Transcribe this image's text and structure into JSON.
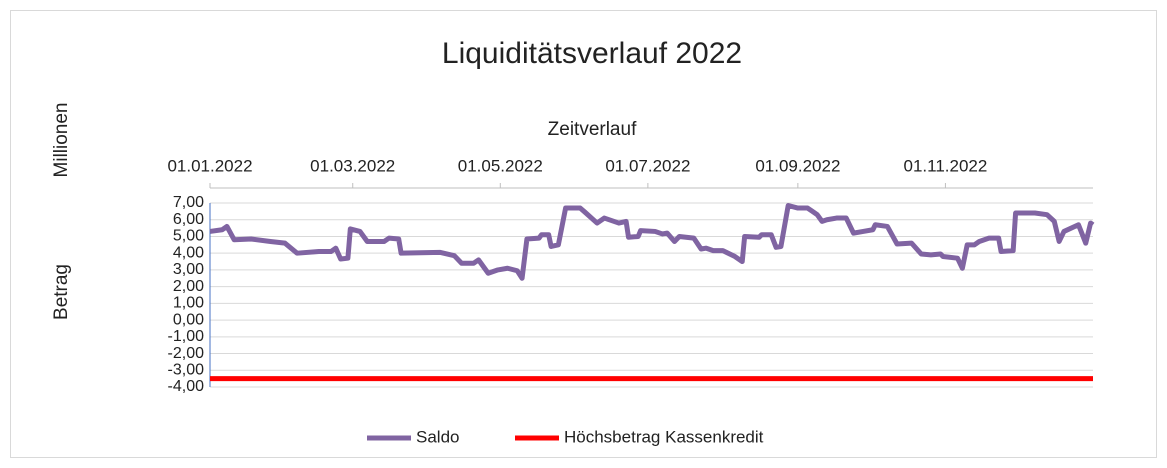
{
  "chart_data": {
    "type": "line",
    "title": "Liquiditätsverlauf 2022",
    "x_label": "Zeitverlauf",
    "y_label_top": "Millionen",
    "y_label": "Betrag",
    "xlim": [
      0,
      365
    ],
    "xticks": [
      {
        "value": 0,
        "label": "01.01.2022"
      },
      {
        "value": 59,
        "label": "01.03.2022"
      },
      {
        "value": 120,
        "label": "01.05.2022"
      },
      {
        "value": 181,
        "label": "01.07.2022"
      },
      {
        "value": 243,
        "label": "01.09.2022"
      },
      {
        "value": 304,
        "label": "01.11.2022"
      }
    ],
    "ylim": [
      -4,
      7
    ],
    "yticks": [
      {
        "value": 7,
        "label": "7,00"
      },
      {
        "value": 6,
        "label": "6,00"
      },
      {
        "value": 5,
        "label": "5,00"
      },
      {
        "value": 4,
        "label": "4,00"
      },
      {
        "value": 3,
        "label": "3,00"
      },
      {
        "value": 2,
        "label": "2,00"
      },
      {
        "value": 1,
        "label": "1,00"
      },
      {
        "value": 0,
        "label": "0,00"
      },
      {
        "value": -1,
        "label": "-1,00"
      },
      {
        "value": -2,
        "label": "-2,00"
      },
      {
        "value": -3,
        "label": "-3,00"
      },
      {
        "value": -4,
        "label": "-4,00"
      }
    ],
    "grid": true,
    "legend": "bottom",
    "series": [
      {
        "name": "Saldo",
        "color": "#8064a2",
        "x": [
          0,
          5,
          7,
          10,
          17,
          25,
          31,
          36,
          45,
          50,
          52,
          54,
          57,
          58,
          62,
          65,
          72,
          74,
          78,
          79,
          95,
          101,
          104,
          109,
          111,
          115,
          119,
          123,
          127,
          129,
          131,
          136,
          137,
          140,
          141,
          144,
          147,
          153,
          155,
          160,
          163,
          169,
          172,
          173,
          177,
          178,
          184,
          187,
          189,
          192,
          194,
          200,
          203,
          205,
          208,
          212,
          217,
          220,
          221,
          227,
          228,
          232,
          234,
          236,
          239,
          243,
          247,
          249,
          251,
          253,
          255,
          259,
          263,
          266,
          270,
          274,
          275,
          280,
          284,
          290,
          294,
          298,
          302,
          303,
          309,
          311,
          313,
          316,
          318,
          322,
          326,
          327,
          332,
          333,
          341,
          346,
          349,
          351,
          353,
          359,
          362,
          364,
          365
        ],
        "values": [
          5.3,
          5.4,
          5.6,
          4.8,
          4.85,
          4.7,
          4.6,
          4.0,
          4.1,
          4.1,
          4.3,
          3.65,
          3.7,
          5.45,
          5.3,
          4.7,
          4.7,
          4.9,
          4.85,
          4.0,
          4.05,
          3.85,
          3.4,
          3.4,
          3.6,
          2.8,
          3.0,
          3.1,
          2.95,
          2.5,
          4.85,
          4.9,
          5.1,
          5.1,
          4.4,
          4.5,
          6.7,
          6.7,
          6.45,
          5.8,
          6.1,
          5.8,
          5.9,
          4.95,
          5.0,
          5.35,
          5.3,
          5.15,
          5.2,
          4.7,
          5.0,
          4.9,
          4.25,
          4.3,
          4.15,
          4.15,
          3.8,
          3.5,
          5.0,
          4.95,
          5.1,
          5.1,
          4.35,
          4.4,
          6.85,
          6.7,
          6.7,
          6.5,
          6.3,
          5.9,
          6.0,
          6.1,
          6.1,
          5.2,
          5.3,
          5.4,
          5.7,
          5.6,
          4.55,
          4.6,
          3.95,
          3.9,
          3.95,
          3.8,
          3.7,
          3.1,
          4.5,
          4.5,
          4.7,
          4.9,
          4.9,
          4.1,
          4.15,
          6.4,
          6.4,
          6.3,
          5.9,
          4.7,
          5.3,
          5.7,
          4.6,
          5.8,
          5.7
        ]
      },
      {
        "name": "Höchsbetrag Kassenkredit",
        "color": "#ff0000",
        "x": [
          0,
          365
        ],
        "values": [
          -3.5,
          -3.5
        ]
      }
    ]
  }
}
